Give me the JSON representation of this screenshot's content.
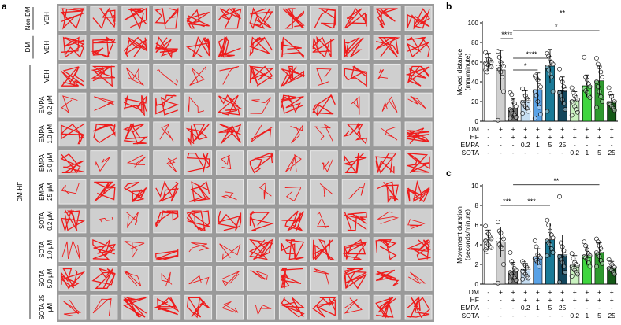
{
  "panel_labels": {
    "a": "a",
    "b": "b",
    "c": "c"
  },
  "panel_a": {
    "top_groups": [
      {
        "group": "Non-DM",
        "sub": "VEH"
      },
      {
        "group": "DM",
        "sub": "VEH"
      }
    ],
    "dmhf_group": "DM-HF",
    "dmhf_rows": [
      [
        "VEH"
      ],
      [
        "EMPA",
        "0.2 μM"
      ],
      [
        "EMPA",
        "1.0 μM"
      ],
      [
        "EMPA",
        "5.0 μM"
      ],
      [
        "EMPA",
        "25 μM"
      ],
      [
        "SOTA",
        "0.2 μM"
      ],
      [
        "SOTA",
        "1.0 μM"
      ],
      [
        "SOTA",
        "5.0 μM"
      ],
      [
        "SOTA 25",
        "μM"
      ]
    ],
    "wells_per_row": 12,
    "trace_color": "#ee1c1c"
  },
  "legend_rows": {
    "labels": [
      "DM",
      "HF",
      "EMPA",
      "SOTA"
    ],
    "values": [
      [
        "-",
        "+",
        "+",
        "+",
        "+",
        "+",
        "+",
        "+",
        "+",
        "+",
        "+"
      ],
      [
        "-",
        "-",
        "+",
        "+",
        "+",
        "+",
        "+",
        "+",
        "+",
        "+",
        "+"
      ],
      [
        "-",
        "-",
        "-",
        "0.2",
        "1",
        "5",
        "25",
        "-",
        "-",
        "-",
        "-"
      ],
      [
        "-",
        "-",
        "-",
        "-",
        "-",
        "-",
        "-",
        "0.2",
        "1",
        "5",
        "25"
      ]
    ]
  },
  "chart_data": [
    {
      "type": "bar",
      "ylabel": [
        "Moved distance",
        "(mm/minute)"
      ],
      "ylim": [
        0,
        100
      ],
      "yticks": [
        "0",
        "20",
        "40",
        "60",
        "80",
        "100"
      ],
      "values": [
        60,
        52,
        13,
        21,
        32,
        56,
        31,
        21,
        36,
        41,
        20
      ],
      "errors": [
        9,
        20,
        10,
        10,
        17,
        17,
        14,
        9,
        11,
        15,
        7
      ],
      "colors": [
        "#ffffff",
        "#d0d0d0",
        "#6f6f6f",
        "#c6def3",
        "#5aa2e6",
        "#1a7a97",
        "#12465c",
        "#c9f2bf",
        "#3fd63f",
        "#2f9a2f",
        "#145a17"
      ],
      "points": [
        [
          70,
          66,
          63,
          62,
          60,
          59,
          58,
          57,
          56,
          55,
          52,
          50
        ],
        [
          71,
          65,
          60,
          58,
          56,
          55,
          53,
          50,
          45,
          30,
          1
        ],
        [
          29,
          27,
          20,
          18,
          15,
          12,
          10,
          8,
          6,
          4,
          3
        ],
        [
          33,
          29,
          26,
          23,
          21,
          19,
          17,
          15,
          13,
          10,
          8
        ],
        [
          46,
          44,
          42,
          40,
          35,
          30,
          26,
          20,
          14,
          7,
          3
        ],
        [
          69,
          66,
          64,
          60,
          58,
          55,
          52,
          48,
          45,
          30,
          10
        ],
        [
          53,
          43,
          40,
          35,
          32,
          29,
          26,
          22,
          18,
          12
        ],
        [
          34,
          29,
          26,
          24,
          22,
          20,
          18,
          15,
          12,
          9,
          6
        ],
        [
          65,
          45,
          42,
          38,
          35,
          33,
          31,
          29,
          26,
          24
        ],
        [
          64,
          58,
          55,
          50,
          45,
          40,
          35,
          30,
          25,
          20,
          14
        ],
        [
          34,
          28,
          25,
          22,
          20,
          18,
          17,
          15,
          13,
          11
        ]
      ],
      "sig": [
        {
          "from": 1,
          "to": 2,
          "label": "****",
          "y": 84
        },
        {
          "from": 2,
          "to": 5,
          "label": "****",
          "y": 64
        },
        {
          "from": 2,
          "to": 4,
          "label": "*",
          "y": 52
        },
        {
          "from": 2,
          "to": 9,
          "label": "*",
          "y": 92
        },
        {
          "from": 2,
          "to": 10,
          "label": "**",
          "y": 106
        }
      ]
    },
    {
      "type": "bar",
      "ylabel": [
        "Movement duration",
        "(seconds/minute)"
      ],
      "ylim": [
        0,
        10
      ],
      "yticks": [
        "0",
        "2",
        "4",
        "6",
        "8",
        "10"
      ],
      "values": [
        4.5,
        4.3,
        1.3,
        1.5,
        2.8,
        4.5,
        3.0,
        1.9,
        2.9,
        3.2,
        1.7
      ],
      "errors": [
        1.0,
        1.5,
        0.9,
        0.6,
        0.8,
        1.7,
        2.0,
        1.0,
        1.0,
        1.0,
        0.6
      ],
      "colors": [
        "#ffffff",
        "#d0d0d0",
        "#6f6f6f",
        "#c6def3",
        "#5aa2e6",
        "#1a7a97",
        "#12465c",
        "#c9f2bf",
        "#3fd63f",
        "#2f9a2f",
        "#145a17"
      ],
      "points": [
        [
          5.9,
          5.3,
          5.1,
          4.8,
          4.6,
          4.4,
          4.2,
          4.0,
          3.8,
          3.7,
          3.5,
          3.3
        ],
        [
          6.3,
          5.4,
          5.2,
          4.8,
          4.6,
          4.5,
          4.0,
          3.8,
          3.6,
          2.0,
          0.1
        ],
        [
          3.2,
          2.3,
          1.8,
          1.6,
          1.4,
          1.2,
          1.0,
          0.8,
          0.6,
          0.4,
          0.3
        ],
        [
          2.3,
          2.1,
          1.9,
          1.7,
          1.5,
          1.3,
          1.2,
          1.0,
          0.8,
          0.6,
          0.5
        ],
        [
          4.4,
          3.8,
          3.0,
          2.8,
          2.7,
          2.6,
          2.4,
          2.2,
          1.8
        ],
        [
          6.5,
          6.0,
          5.4,
          5.0,
          4.7,
          4.4,
          4.2,
          4.0,
          3.6,
          3.2,
          2.9
        ],
        [
          8.9,
          4.2,
          3.8,
          3.4,
          3.0,
          2.8,
          2.5,
          2.2,
          1.8,
          1.2,
          0.2
        ],
        [
          3.1,
          2.6,
          2.2,
          2.0,
          1.9,
          1.8,
          1.6,
          1.4,
          1.2,
          1.0,
          0.8
        ],
        [
          4.3,
          3.9,
          3.5,
          3.1,
          2.9,
          2.8,
          2.7,
          2.5,
          2.2,
          1.8
        ],
        [
          4.6,
          4.3,
          3.9,
          3.6,
          3.4,
          3.2,
          3.0,
          2.8,
          2.4,
          2.1,
          1.8
        ],
        [
          2.5,
          2.2,
          2.0,
          1.8,
          1.7,
          1.6,
          1.5,
          1.4,
          1.2,
          1.0
        ]
      ],
      "sig": [
        {
          "from": 1,
          "to": 2,
          "label": "***",
          "y": 8.0
        },
        {
          "from": 2,
          "to": 5,
          "label": "***",
          "y": 8.0
        },
        {
          "from": 2,
          "to": 9,
          "label": "**",
          "y": 10.1
        }
      ]
    }
  ]
}
